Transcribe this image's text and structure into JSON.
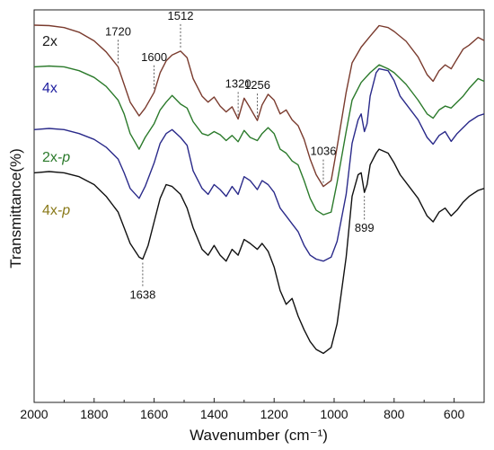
{
  "chart_data": {
    "type": "line",
    "title": "",
    "xlabel": "Wavenumber (cm⁻¹)",
    "ylabel": "Transmittance(%)",
    "xlim": [
      2000,
      500
    ],
    "x_reversed": true,
    "xticks": [
      2000,
      1800,
      1600,
      1400,
      1200,
      1000,
      800,
      600
    ],
    "ylim": [
      0,
      100
    ],
    "y_tick_labels": false,
    "grid": false,
    "legend_position": "top-left",
    "series": [
      {
        "name": "2x",
        "color": "#7a3b2e",
        "x": [
          2000,
          1950,
          1900,
          1850,
          1800,
          1760,
          1720,
          1700,
          1680,
          1650,
          1630,
          1600,
          1580,
          1560,
          1540,
          1512,
          1490,
          1470,
          1440,
          1420,
          1400,
          1380,
          1360,
          1340,
          1320,
          1300,
          1280,
          1256,
          1240,
          1220,
          1200,
          1180,
          1160,
          1140,
          1120,
          1100,
          1080,
          1060,
          1036,
          1010,
          990,
          960,
          940,
          910,
          880,
          850,
          820,
          800,
          760,
          720,
          690,
          670,
          650,
          630,
          610,
          590,
          570,
          550,
          520,
          500
        ],
        "y": [
          96.1,
          96.0,
          95.5,
          94.3,
          92.1,
          89.3,
          85.5,
          81.0,
          76.5,
          73.0,
          75.0,
          79.0,
          84.0,
          87.0,
          88.5,
          89.5,
          87.8,
          82.5,
          78.0,
          76.5,
          77.8,
          75.5,
          74.0,
          75.3,
          72.2,
          77.5,
          75.0,
          71.8,
          75.8,
          78.5,
          77.0,
          73.5,
          74.5,
          72.0,
          70.5,
          67.0,
          62.0,
          58.0,
          55.0,
          56.5,
          65.0,
          79.0,
          86.5,
          90.5,
          93.3,
          96.0,
          95.5,
          94.5,
          92.0,
          88.0,
          83.5,
          81.8,
          84.5,
          86.0,
          85.0,
          87.5,
          90.0,
          91.0,
          93.0,
          92.2
        ]
      },
      {
        "name": "4x",
        "color": "#2b7a2b",
        "x": [
          2000,
          1950,
          1900,
          1850,
          1800,
          1760,
          1720,
          1700,
          1680,
          1650,
          1630,
          1600,
          1580,
          1560,
          1540,
          1512,
          1490,
          1470,
          1440,
          1420,
          1400,
          1380,
          1360,
          1340,
          1320,
          1300,
          1280,
          1256,
          1240,
          1220,
          1200,
          1180,
          1160,
          1140,
          1120,
          1100,
          1080,
          1060,
          1036,
          1010,
          990,
          960,
          940,
          910,
          880,
          850,
          820,
          800,
          760,
          720,
          690,
          670,
          650,
          630,
          610,
          590,
          570,
          550,
          520,
          500
        ],
        "y": [
          85.5,
          85.7,
          85.5,
          84.5,
          82.8,
          80.5,
          77.0,
          73.5,
          68.5,
          64.5,
          67.5,
          71.0,
          74.5,
          76.5,
          78.2,
          76.0,
          75.0,
          71.5,
          68.5,
          68.0,
          69.0,
          68.2,
          66.7,
          68.0,
          66.4,
          69.3,
          67.5,
          66.7,
          68.5,
          70.0,
          68.5,
          64.5,
          63.5,
          61.5,
          60.5,
          56.5,
          52.0,
          49.0,
          47.8,
          48.5,
          56.0,
          69.0,
          77.0,
          81.5,
          84.0,
          86.0,
          85.0,
          84.0,
          81.0,
          77.0,
          73.5,
          72.4,
          74.5,
          75.5,
          75.0,
          76.5,
          78.0,
          80.0,
          82.5,
          81.8
        ]
      },
      {
        "name": "2x-p",
        "color": "#2a2a8a",
        "x": [
          2000,
          1950,
          1900,
          1850,
          1800,
          1760,
          1720,
          1700,
          1680,
          1650,
          1630,
          1600,
          1580,
          1560,
          1540,
          1512,
          1490,
          1470,
          1440,
          1420,
          1400,
          1380,
          1360,
          1340,
          1320,
          1300,
          1280,
          1256,
          1240,
          1220,
          1200,
          1180,
          1160,
          1140,
          1120,
          1100,
          1080,
          1060,
          1036,
          1010,
          990,
          960,
          940,
          920,
          910,
          899,
          890,
          880,
          860,
          850,
          820,
          800,
          780,
          760,
          720,
          690,
          670,
          650,
          630,
          610,
          590,
          570,
          550,
          520,
          500
        ],
        "y": [
          69.5,
          69.8,
          69.5,
          68.5,
          67.0,
          65.0,
          62.0,
          58.5,
          54.5,
          52.0,
          55.0,
          61.0,
          66.0,
          68.5,
          69.5,
          67.5,
          65.5,
          59.0,
          54.5,
          53.0,
          55.5,
          54.2,
          52.5,
          55.0,
          53.0,
          57.5,
          56.5,
          54.2,
          56.5,
          55.5,
          53.5,
          49.5,
          47.5,
          45.5,
          43.5,
          40.0,
          37.5,
          36.5,
          36.0,
          37.0,
          41.0,
          53.0,
          66.0,
          72.0,
          73.5,
          69.0,
          71.0,
          78.0,
          84.0,
          85.0,
          84.5,
          82.0,
          78.0,
          76.0,
          72.0,
          67.5,
          65.8,
          68.0,
          69.0,
          66.5,
          68.5,
          70.0,
          71.5,
          73.0,
          73.5
        ]
      },
      {
        "name": "4x-p",
        "color": "#111111",
        "x": [
          2000,
          1950,
          1900,
          1850,
          1800,
          1760,
          1720,
          1700,
          1680,
          1650,
          1638,
          1620,
          1600,
          1580,
          1560,
          1540,
          1512,
          1490,
          1470,
          1440,
          1420,
          1400,
          1380,
          1360,
          1340,
          1320,
          1300,
          1280,
          1256,
          1240,
          1220,
          1200,
          1180,
          1160,
          1140,
          1120,
          1100,
          1080,
          1060,
          1036,
          1010,
          990,
          960,
          940,
          920,
          910,
          899,
          890,
          880,
          860,
          850,
          820,
          800,
          780,
          760,
          720,
          690,
          670,
          650,
          630,
          610,
          590,
          570,
          550,
          520,
          500
        ],
        "y": [
          58.5,
          58.8,
          58.5,
          57.5,
          55.5,
          52.5,
          48.5,
          44.5,
          40.5,
          37.0,
          36.5,
          40.0,
          46.0,
          52.0,
          55.5,
          55.0,
          53.0,
          49.5,
          44.5,
          39.0,
          37.5,
          40.0,
          37.5,
          36.0,
          39.0,
          37.5,
          41.5,
          40.5,
          39.0,
          40.5,
          38.5,
          34.5,
          28.5,
          25.0,
          26.5,
          22.0,
          18.5,
          15.5,
          13.5,
          12.5,
          14.0,
          20.0,
          37.0,
          52.5,
          58.0,
          58.5,
          53.5,
          55.5,
          60.5,
          63.5,
          64.5,
          63.5,
          61.0,
          58.0,
          56.0,
          52.0,
          47.5,
          46.0,
          48.5,
          49.5,
          47.5,
          49.0,
          51.0,
          52.5,
          54.0,
          54.5
        ]
      }
    ],
    "legend": [
      {
        "label": "2x",
        "color": "#1c1c1c"
      },
      {
        "label": "4x",
        "color": "#1f1fa0"
      },
      {
        "label": "2x",
        "suffix": "-p",
        "color": "#2b7a2b"
      },
      {
        "label": "4x",
        "suffix": "-p",
        "color": "#8a7a1a"
      }
    ],
    "annotations": [
      {
        "label": "1720",
        "x": 1720,
        "series": 0
      },
      {
        "label": "1600",
        "x": 1600,
        "series": 0
      },
      {
        "label": "1512",
        "x": 1512,
        "series": 0
      },
      {
        "label": "1320",
        "x": 1320,
        "series": 0
      },
      {
        "label": "1256",
        "x": 1256,
        "series": 0
      },
      {
        "label": "1036",
        "x": 1036,
        "series": 0
      },
      {
        "label": "1638",
        "x": 1638,
        "series": 3
      },
      {
        "label": "899",
        "x": 899,
        "series": 3
      }
    ]
  }
}
